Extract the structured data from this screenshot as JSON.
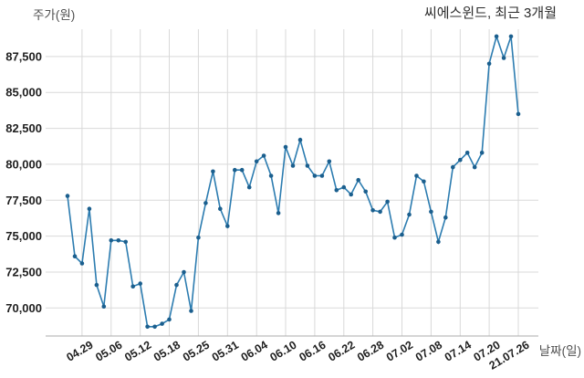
{
  "chart_data": {
    "type": "line",
    "title": "씨에스윈드, 최근 3개월",
    "ylabel": "주가(원)",
    "xlabel": "날짜(일)",
    "grid": true,
    "legend": "none",
    "x_tick_labels": [
      "04.29",
      "05.06",
      "05.12",
      "05.18",
      "05.25",
      "05.31",
      "06.04",
      "06.10",
      "06.16",
      "06.22",
      "06.28",
      "07.02",
      "07.08",
      "07.14",
      "07.20",
      "21.07.26"
    ],
    "x_tick_indices": [
      2,
      6,
      10,
      14,
      18,
      22,
      26,
      30,
      34,
      38,
      42,
      46,
      50,
      54,
      58,
      62
    ],
    "y_tick_values": [
      70000,
      72500,
      75000,
      77500,
      80000,
      82500,
      85000,
      87500
    ],
    "y_tick_labels": [
      "70,000",
      "72,500",
      "75,000",
      "77,500",
      "80,000",
      "82,500",
      "85,000",
      "87,500"
    ],
    "ylim": [
      68050,
      89400
    ],
    "values": [
      77800,
      73600,
      73100,
      76900,
      71600,
      70100,
      74700,
      74700,
      74600,
      71500,
      71700,
      68700,
      68700,
      68900,
      69200,
      71600,
      72500,
      69800,
      74900,
      77300,
      79500,
      76900,
      75700,
      79600,
      79600,
      78400,
      80200,
      80600,
      79200,
      76600,
      81200,
      79900,
      81700,
      79900,
      79200,
      79200,
      80200,
      78200,
      78400,
      77900,
      78900,
      78100,
      76800,
      76700,
      77400,
      74900,
      75100,
      76500,
      79200,
      78800,
      76700,
      74600,
      76300,
      79800,
      80300,
      80800,
      79800,
      80800,
      87000,
      88900,
      87400,
      88900,
      83500
    ],
    "colors": {
      "line": "#2c7cb0",
      "marker": "#1b5f8e",
      "grid": "#d9d9d9",
      "axis": "#ababab",
      "title": "#2b2b2b",
      "tick": "#1f1f1f",
      "axis_label": "#4f4f4f",
      "background": "#ffffff"
    }
  }
}
